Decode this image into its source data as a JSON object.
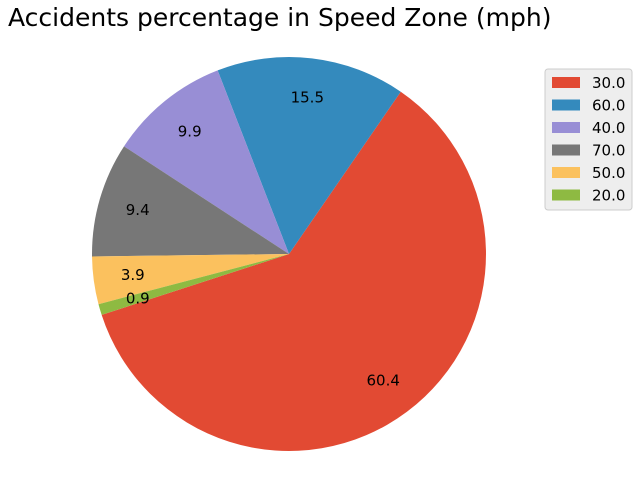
{
  "chart_data": {
    "type": "pie",
    "title": "Accidents percentage in Speed Zone (mph)",
    "legend_position": "top-right",
    "slices": [
      {
        "label": "30.0",
        "value": 60.4,
        "display": "60.4",
        "color": "#E24A33"
      },
      {
        "label": "60.0",
        "value": 15.5,
        "display": "15.5",
        "color": "#348ABD"
      },
      {
        "label": "40.0",
        "value": 9.9,
        "display": "9.9",
        "color": "#988ED5"
      },
      {
        "label": "70.0",
        "value": 9.4,
        "display": "9.4",
        "color": "#777777"
      },
      {
        "label": "50.0",
        "value": 3.9,
        "display": "3.9",
        "color": "#FBC15E"
      },
      {
        "label": "20.0",
        "value": 0.9,
        "display": "0.9",
        "color": "#8EBA42"
      }
    ]
  }
}
